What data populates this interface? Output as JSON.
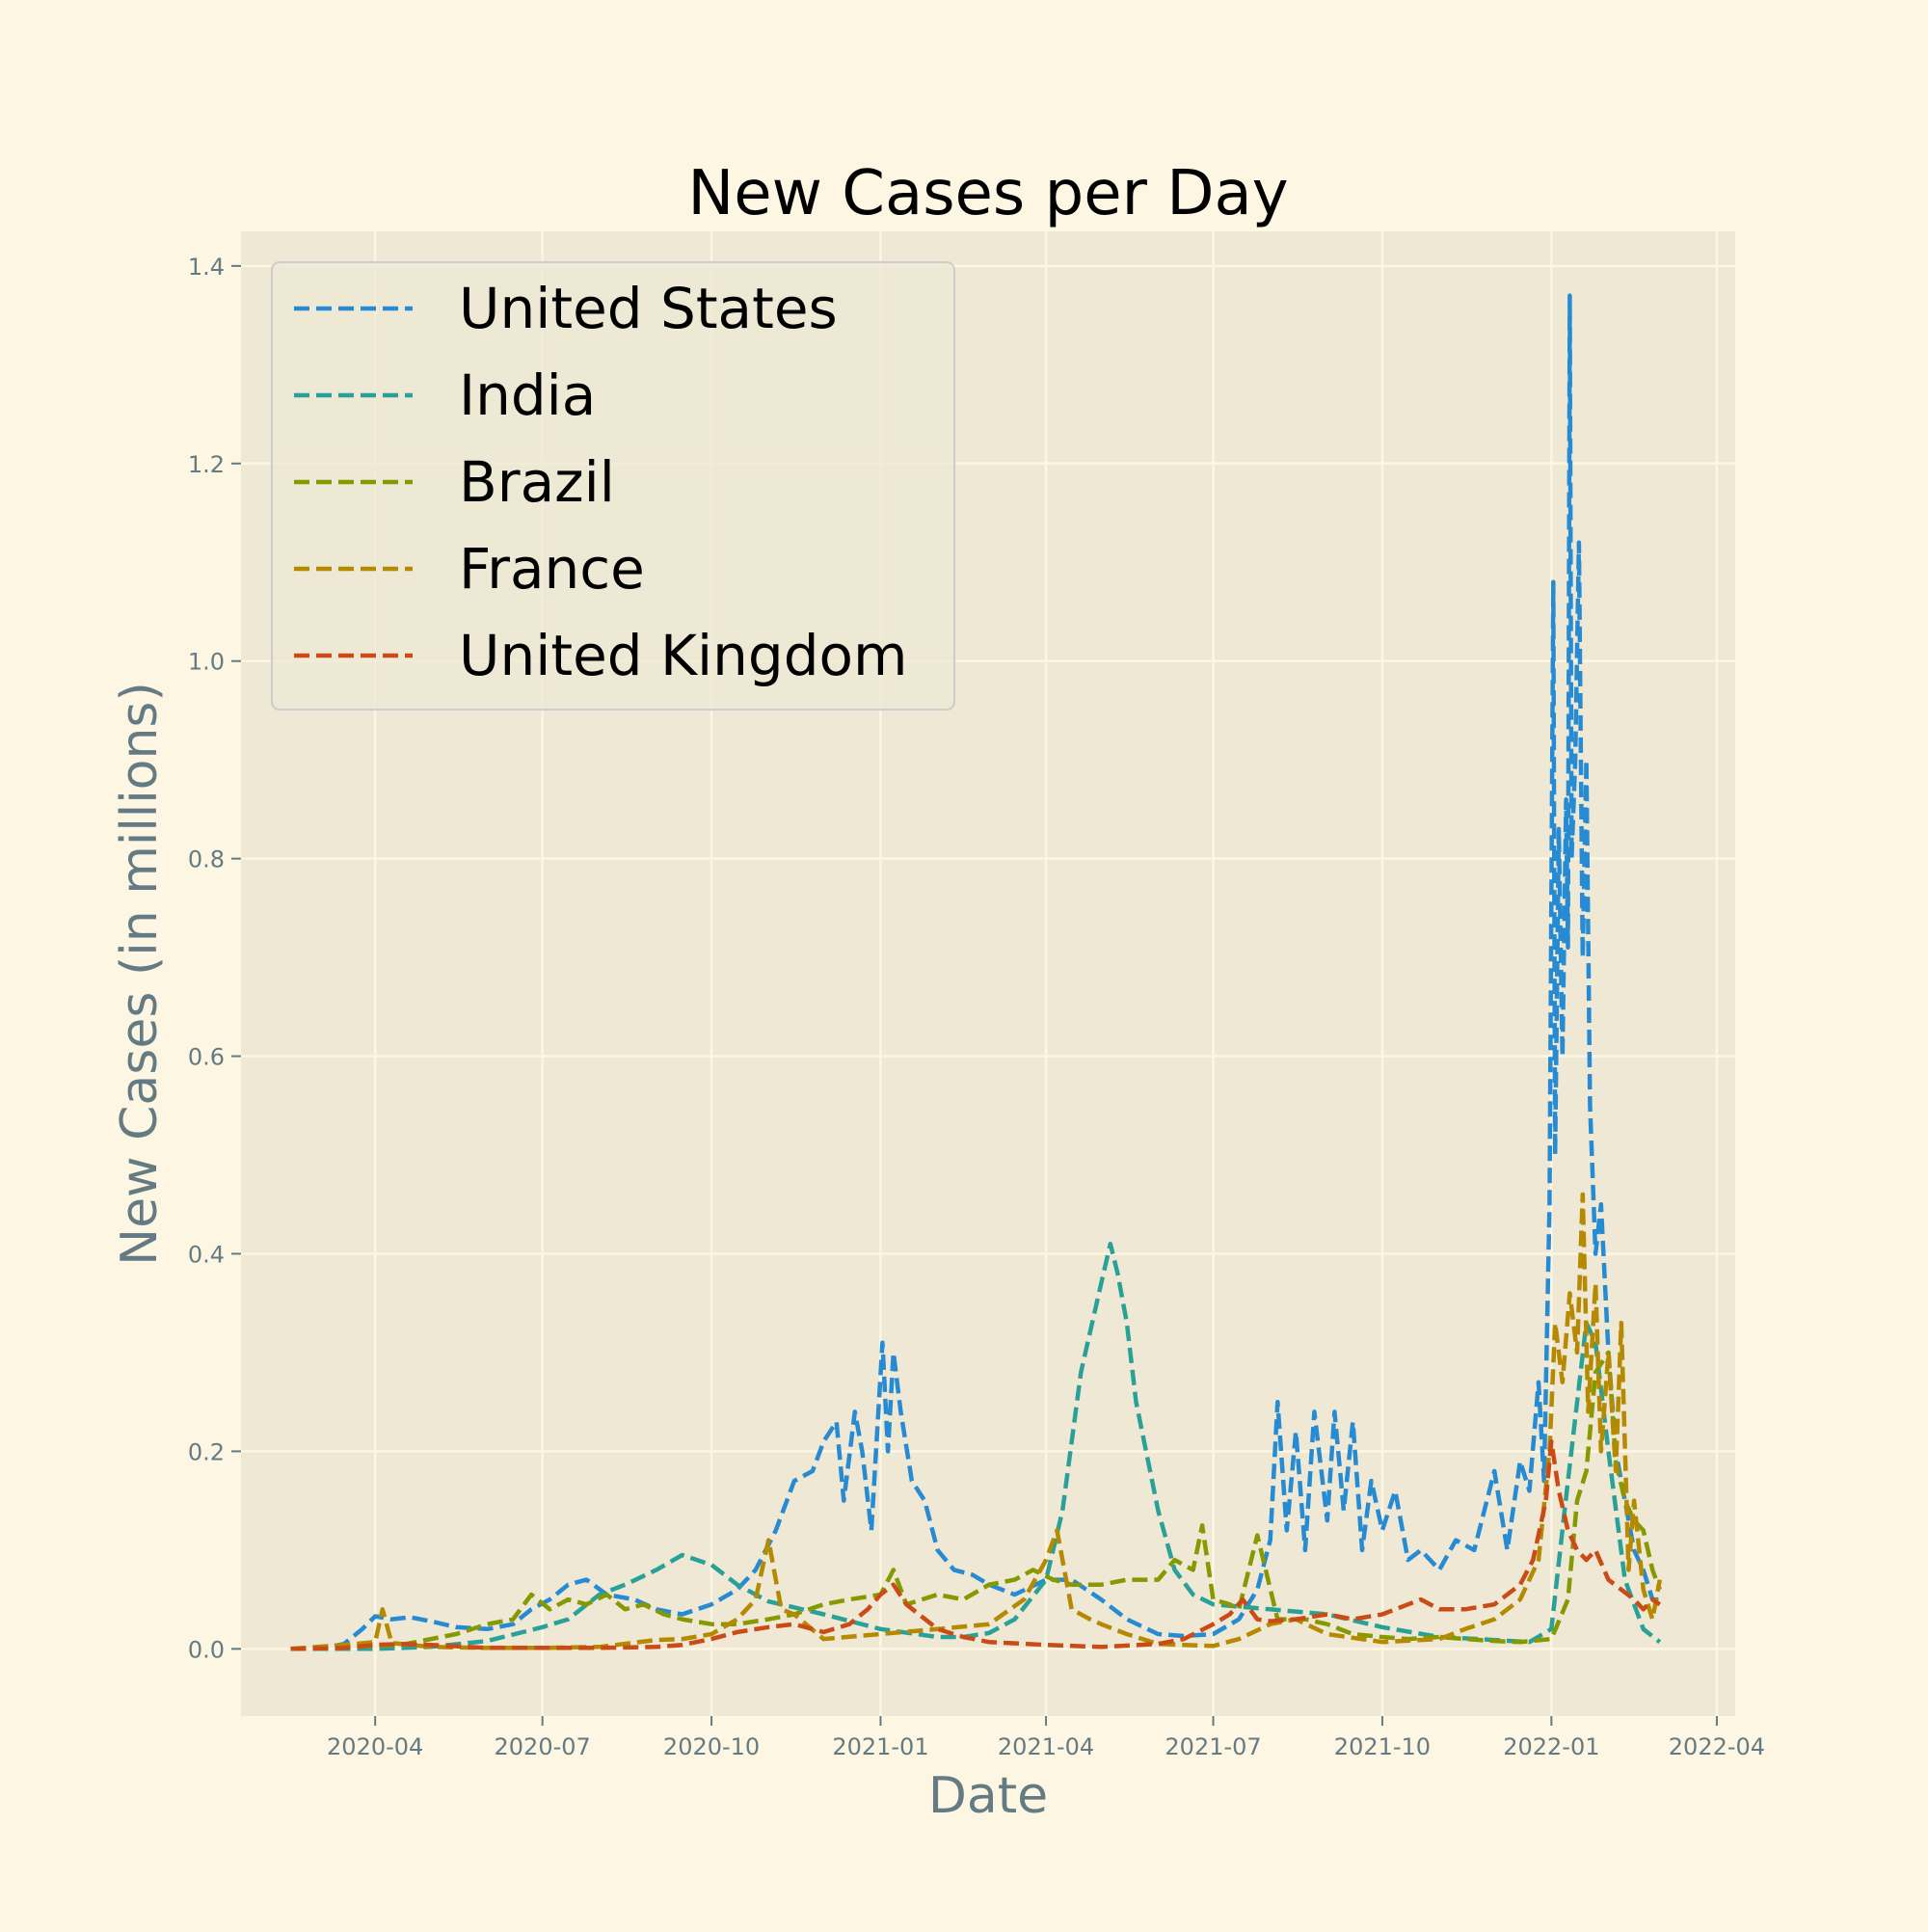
{
  "chart_data": {
    "type": "line",
    "title": "New Cases per Day",
    "xlabel": "Date",
    "ylabel": "New Cases (in millions)",
    "x_ticks": [
      "2020-04",
      "2020-07",
      "2020-10",
      "2021-01",
      "2021-04",
      "2021-07",
      "2021-10",
      "2022-01",
      "2022-04"
    ],
    "x_tick_dates": [
      "2020-04-01",
      "2020-07-01",
      "2020-10-01",
      "2021-01-01",
      "2021-04-01",
      "2021-07-01",
      "2021-10-01",
      "2022-01-01",
      "2022-04-01"
    ],
    "y_ticks": [
      0.0,
      0.2,
      0.4,
      0.6,
      0.8,
      1.0,
      1.2,
      1.4
    ],
    "y_tick_labels": [
      "0.0",
      "0.2",
      "0.4",
      "0.6",
      "0.8",
      "1.0",
      "1.2",
      "1.4"
    ],
    "xlim": [
      "2020-01-19",
      "2022-04-11"
    ],
    "ylim": [
      -0.068,
      1.435
    ],
    "grid": true,
    "legend_position": "top-left",
    "line_style": "dashed",
    "series": [
      {
        "name": "United States",
        "color": "#268bd2",
        "x": [
          "2020-02-15",
          "2020-03-01",
          "2020-03-15",
          "2020-03-25",
          "2020-04-01",
          "2020-04-10",
          "2020-04-20",
          "2020-05-01",
          "2020-05-15",
          "2020-06-01",
          "2020-06-15",
          "2020-06-25",
          "2020-07-05",
          "2020-07-15",
          "2020-07-25",
          "2020-08-05",
          "2020-08-20",
          "2020-09-01",
          "2020-09-15",
          "2020-10-01",
          "2020-10-15",
          "2020-10-25",
          "2020-11-05",
          "2020-11-15",
          "2020-11-25",
          "2020-12-01",
          "2020-12-08",
          "2020-12-12",
          "2020-12-18",
          "2020-12-22",
          "2020-12-27",
          "2021-01-02",
          "2021-01-05",
          "2021-01-08",
          "2021-01-12",
          "2021-01-18",
          "2021-01-25",
          "2021-02-01",
          "2021-02-10",
          "2021-02-20",
          "2021-03-01",
          "2021-03-15",
          "2021-04-01",
          "2021-04-15",
          "2021-05-01",
          "2021-05-15",
          "2021-06-01",
          "2021-06-15",
          "2021-07-01",
          "2021-07-15",
          "2021-07-25",
          "2021-08-01",
          "2021-08-05",
          "2021-08-10",
          "2021-08-15",
          "2021-08-20",
          "2021-08-25",
          "2021-09-01",
          "2021-09-05",
          "2021-09-10",
          "2021-09-15",
          "2021-09-20",
          "2021-09-25",
          "2021-10-01",
          "2021-10-08",
          "2021-10-15",
          "2021-10-22",
          "2021-11-01",
          "2021-11-10",
          "2021-11-20",
          "2021-12-01",
          "2021-12-08",
          "2021-12-15",
          "2021-12-20",
          "2021-12-25",
          "2021-12-28",
          "2021-12-31",
          "2022-01-02",
          "2022-01-03",
          "2022-01-05",
          "2022-01-07",
          "2022-01-09",
          "2022-01-10",
          "2022-01-11",
          "2022-01-12",
          "2022-01-14",
          "2022-01-16",
          "2022-01-18",
          "2022-01-20",
          "2022-01-22",
          "2022-01-25",
          "2022-01-28",
          "2022-02-01",
          "2022-02-05",
          "2022-02-10",
          "2022-02-15",
          "2022-02-20",
          "2022-02-25",
          "2022-03-01"
        ],
        "y": [
          0.0,
          0.0,
          0.005,
          0.02,
          0.033,
          0.03,
          0.032,
          0.028,
          0.022,
          0.02,
          0.025,
          0.04,
          0.05,
          0.065,
          0.07,
          0.055,
          0.05,
          0.04,
          0.035,
          0.045,
          0.06,
          0.08,
          0.12,
          0.17,
          0.18,
          0.21,
          0.23,
          0.15,
          0.24,
          0.2,
          0.12,
          0.31,
          0.2,
          0.3,
          0.24,
          0.17,
          0.15,
          0.1,
          0.08,
          0.075,
          0.065,
          0.055,
          0.07,
          0.07,
          0.05,
          0.03,
          0.015,
          0.013,
          0.015,
          0.03,
          0.06,
          0.11,
          0.25,
          0.12,
          0.22,
          0.1,
          0.24,
          0.13,
          0.24,
          0.14,
          0.23,
          0.1,
          0.17,
          0.12,
          0.16,
          0.09,
          0.1,
          0.08,
          0.11,
          0.1,
          0.18,
          0.1,
          0.19,
          0.16,
          0.27,
          0.17,
          0.45,
          1.08,
          0.5,
          0.83,
          0.6,
          0.86,
          0.71,
          1.37,
          0.8,
          0.9,
          1.12,
          0.7,
          0.9,
          0.55,
          0.4,
          0.45,
          0.3,
          0.2,
          0.15,
          0.1,
          0.08,
          0.05,
          0.05
        ]
      },
      {
        "name": "India",
        "color": "#2aa198",
        "x": [
          "2020-02-15",
          "2020-04-01",
          "2020-05-01",
          "2020-06-01",
          "2020-07-01",
          "2020-07-15",
          "2020-08-01",
          "2020-08-15",
          "2020-09-01",
          "2020-09-15",
          "2020-10-01",
          "2020-10-15",
          "2020-11-01",
          "2020-11-15",
          "2020-12-01",
          "2021-01-01",
          "2021-02-01",
          "2021-02-15",
          "2021-03-01",
          "2021-03-15",
          "2021-04-01",
          "2021-04-10",
          "2021-04-20",
          "2021-05-01",
          "2021-05-06",
          "2021-05-10",
          "2021-05-15",
          "2021-05-20",
          "2021-06-01",
          "2021-06-10",
          "2021-06-20",
          "2021-07-01",
          "2021-08-01",
          "2021-09-01",
          "2021-10-01",
          "2021-11-01",
          "2021-12-01",
          "2021-12-20",
          "2022-01-01",
          "2022-01-10",
          "2022-01-20",
          "2022-01-25",
          "2022-02-01",
          "2022-02-10",
          "2022-02-20",
          "2022-03-01"
        ],
        "y": [
          0.0,
          0.0,
          0.002,
          0.008,
          0.022,
          0.03,
          0.055,
          0.065,
          0.08,
          0.095,
          0.085,
          0.065,
          0.048,
          0.042,
          0.035,
          0.02,
          0.012,
          0.012,
          0.016,
          0.03,
          0.07,
          0.14,
          0.28,
          0.37,
          0.41,
          0.38,
          0.33,
          0.25,
          0.14,
          0.08,
          0.055,
          0.045,
          0.04,
          0.035,
          0.022,
          0.012,
          0.009,
          0.007,
          0.02,
          0.17,
          0.33,
          0.31,
          0.2,
          0.07,
          0.02,
          0.007
        ]
      },
      {
        "name": "Brazil",
        "color": "#859900",
        "x": [
          "2020-02-15",
          "2020-03-15",
          "2020-04-15",
          "2020-05-15",
          "2020-06-01",
          "2020-06-15",
          "2020-06-25",
          "2020-07-05",
          "2020-07-15",
          "2020-07-25",
          "2020-08-05",
          "2020-08-15",
          "2020-08-25",
          "2020-09-05",
          "2020-09-15",
          "2020-10-01",
          "2020-10-15",
          "2020-11-01",
          "2020-11-15",
          "2020-12-01",
          "2020-12-15",
          "2021-01-01",
          "2021-01-08",
          "2021-01-15",
          "2021-02-01",
          "2021-02-15",
          "2021-03-01",
          "2021-03-15",
          "2021-03-25",
          "2021-04-05",
          "2021-04-15",
          "2021-05-01",
          "2021-05-15",
          "2021-06-01",
          "2021-06-10",
          "2021-06-20",
          "2021-06-25",
          "2021-07-01",
          "2021-07-10",
          "2021-07-15",
          "2021-07-25",
          "2021-08-05",
          "2021-08-20",
          "2021-09-01",
          "2021-09-15",
          "2021-10-01",
          "2021-10-15",
          "2021-11-01",
          "2021-11-15",
          "2021-12-01",
          "2021-12-15",
          "2022-01-01",
          "2022-01-10",
          "2022-01-15",
          "2022-01-20",
          "2022-01-25",
          "2022-02-01",
          "2022-02-05",
          "2022-02-10",
          "2022-02-15",
          "2022-02-20",
          "2022-02-25",
          "2022-03-01"
        ],
        "y": [
          0.0,
          0.002,
          0.004,
          0.015,
          0.025,
          0.03,
          0.055,
          0.04,
          0.05,
          0.045,
          0.055,
          0.04,
          0.045,
          0.035,
          0.03,
          0.025,
          0.025,
          0.03,
          0.035,
          0.045,
          0.05,
          0.055,
          0.08,
          0.045,
          0.055,
          0.05,
          0.065,
          0.07,
          0.08,
          0.07,
          0.065,
          0.065,
          0.07,
          0.07,
          0.09,
          0.08,
          0.125,
          0.05,
          0.045,
          0.04,
          0.115,
          0.03,
          0.03,
          0.025,
          0.015,
          0.012,
          0.01,
          0.012,
          0.01,
          0.008,
          0.007,
          0.01,
          0.05,
          0.15,
          0.18,
          0.28,
          0.3,
          0.19,
          0.15,
          0.13,
          0.12,
          0.08,
          0.06
        ]
      },
      {
        "name": "France",
        "color": "#b58900",
        "x": [
          "2020-02-15",
          "2020-03-15",
          "2020-04-01",
          "2020-04-05",
          "2020-04-10",
          "2020-05-01",
          "2020-06-01",
          "2020-07-01",
          "2020-08-01",
          "2020-09-01",
          "2020-09-15",
          "2020-10-01",
          "2020-10-15",
          "2020-10-25",
          "2020-11-01",
          "2020-11-08",
          "2020-11-15",
          "2020-12-01",
          "2021-01-01",
          "2021-02-01",
          "2021-03-01",
          "2021-03-20",
          "2021-04-01",
          "2021-04-07",
          "2021-04-15",
          "2021-04-25",
          "2021-05-01",
          "2021-05-15",
          "2021-06-01",
          "2021-07-01",
          "2021-07-15",
          "2021-08-01",
          "2021-08-15",
          "2021-09-01",
          "2021-10-01",
          "2021-11-01",
          "2021-11-15",
          "2021-12-01",
          "2021-12-15",
          "2021-12-25",
          "2021-12-31",
          "2022-01-03",
          "2022-01-07",
          "2022-01-11",
          "2022-01-15",
          "2022-01-18",
          "2022-01-21",
          "2022-01-25",
          "2022-01-28",
          "2022-02-01",
          "2022-02-05",
          "2022-02-08",
          "2022-02-12",
          "2022-02-15",
          "2022-02-20",
          "2022-02-25",
          "2022-03-01"
        ],
        "y": [
          0.0,
          0.004,
          0.007,
          0.04,
          0.006,
          0.002,
          0.001,
          0.001,
          0.002,
          0.009,
          0.01,
          0.015,
          0.03,
          0.05,
          0.11,
          0.04,
          0.035,
          0.01,
          0.015,
          0.02,
          0.025,
          0.05,
          0.09,
          0.12,
          0.04,
          0.03,
          0.025,
          0.015,
          0.005,
          0.003,
          0.01,
          0.025,
          0.03,
          0.015,
          0.007,
          0.01,
          0.02,
          0.03,
          0.05,
          0.09,
          0.2,
          0.33,
          0.27,
          0.36,
          0.3,
          0.46,
          0.24,
          0.37,
          0.2,
          0.3,
          0.18,
          0.33,
          0.08,
          0.15,
          0.06,
          0.03,
          0.07
        ]
      },
      {
        "name": "United Kingdom",
        "color": "#cb4b16",
        "x": [
          "2020-02-15",
          "2020-03-15",
          "2020-04-01",
          "2020-04-15",
          "2020-05-01",
          "2020-06-01",
          "2020-07-01",
          "2020-08-01",
          "2020-09-01",
          "2020-09-15",
          "2020-10-01",
          "2020-10-15",
          "2020-11-01",
          "2020-11-15",
          "2020-12-01",
          "2020-12-15",
          "2020-12-25",
          "2021-01-01",
          "2021-01-08",
          "2021-01-15",
          "2021-02-01",
          "2021-02-15",
          "2021-03-01",
          "2021-04-01",
          "2021-05-01",
          "2021-06-01",
          "2021-06-15",
          "2021-07-01",
          "2021-07-10",
          "2021-07-17",
          "2021-07-25",
          "2021-08-01",
          "2021-08-15",
          "2021-09-01",
          "2021-09-15",
          "2021-10-01",
          "2021-10-15",
          "2021-10-22",
          "2021-11-01",
          "2021-11-15",
          "2021-12-01",
          "2021-12-15",
          "2021-12-22",
          "2021-12-29",
          "2022-01-01",
          "2022-01-05",
          "2022-01-10",
          "2022-01-15",
          "2022-01-20",
          "2022-01-25",
          "2022-02-01",
          "2022-02-08",
          "2022-02-15",
          "2022-02-20",
          "2022-02-25",
          "2022-03-01"
        ],
        "y": [
          0.0,
          0.001,
          0.004,
          0.005,
          0.004,
          0.001,
          0.001,
          0.001,
          0.002,
          0.004,
          0.01,
          0.017,
          0.022,
          0.025,
          0.017,
          0.025,
          0.04,
          0.055,
          0.065,
          0.045,
          0.02,
          0.012,
          0.007,
          0.004,
          0.002,
          0.005,
          0.01,
          0.025,
          0.035,
          0.05,
          0.03,
          0.028,
          0.03,
          0.035,
          0.03,
          0.035,
          0.045,
          0.05,
          0.04,
          0.04,
          0.045,
          0.065,
          0.09,
          0.15,
          0.21,
          0.16,
          0.12,
          0.1,
          0.09,
          0.1,
          0.07,
          0.06,
          0.05,
          0.04,
          0.05,
          0.045
        ]
      }
    ]
  }
}
